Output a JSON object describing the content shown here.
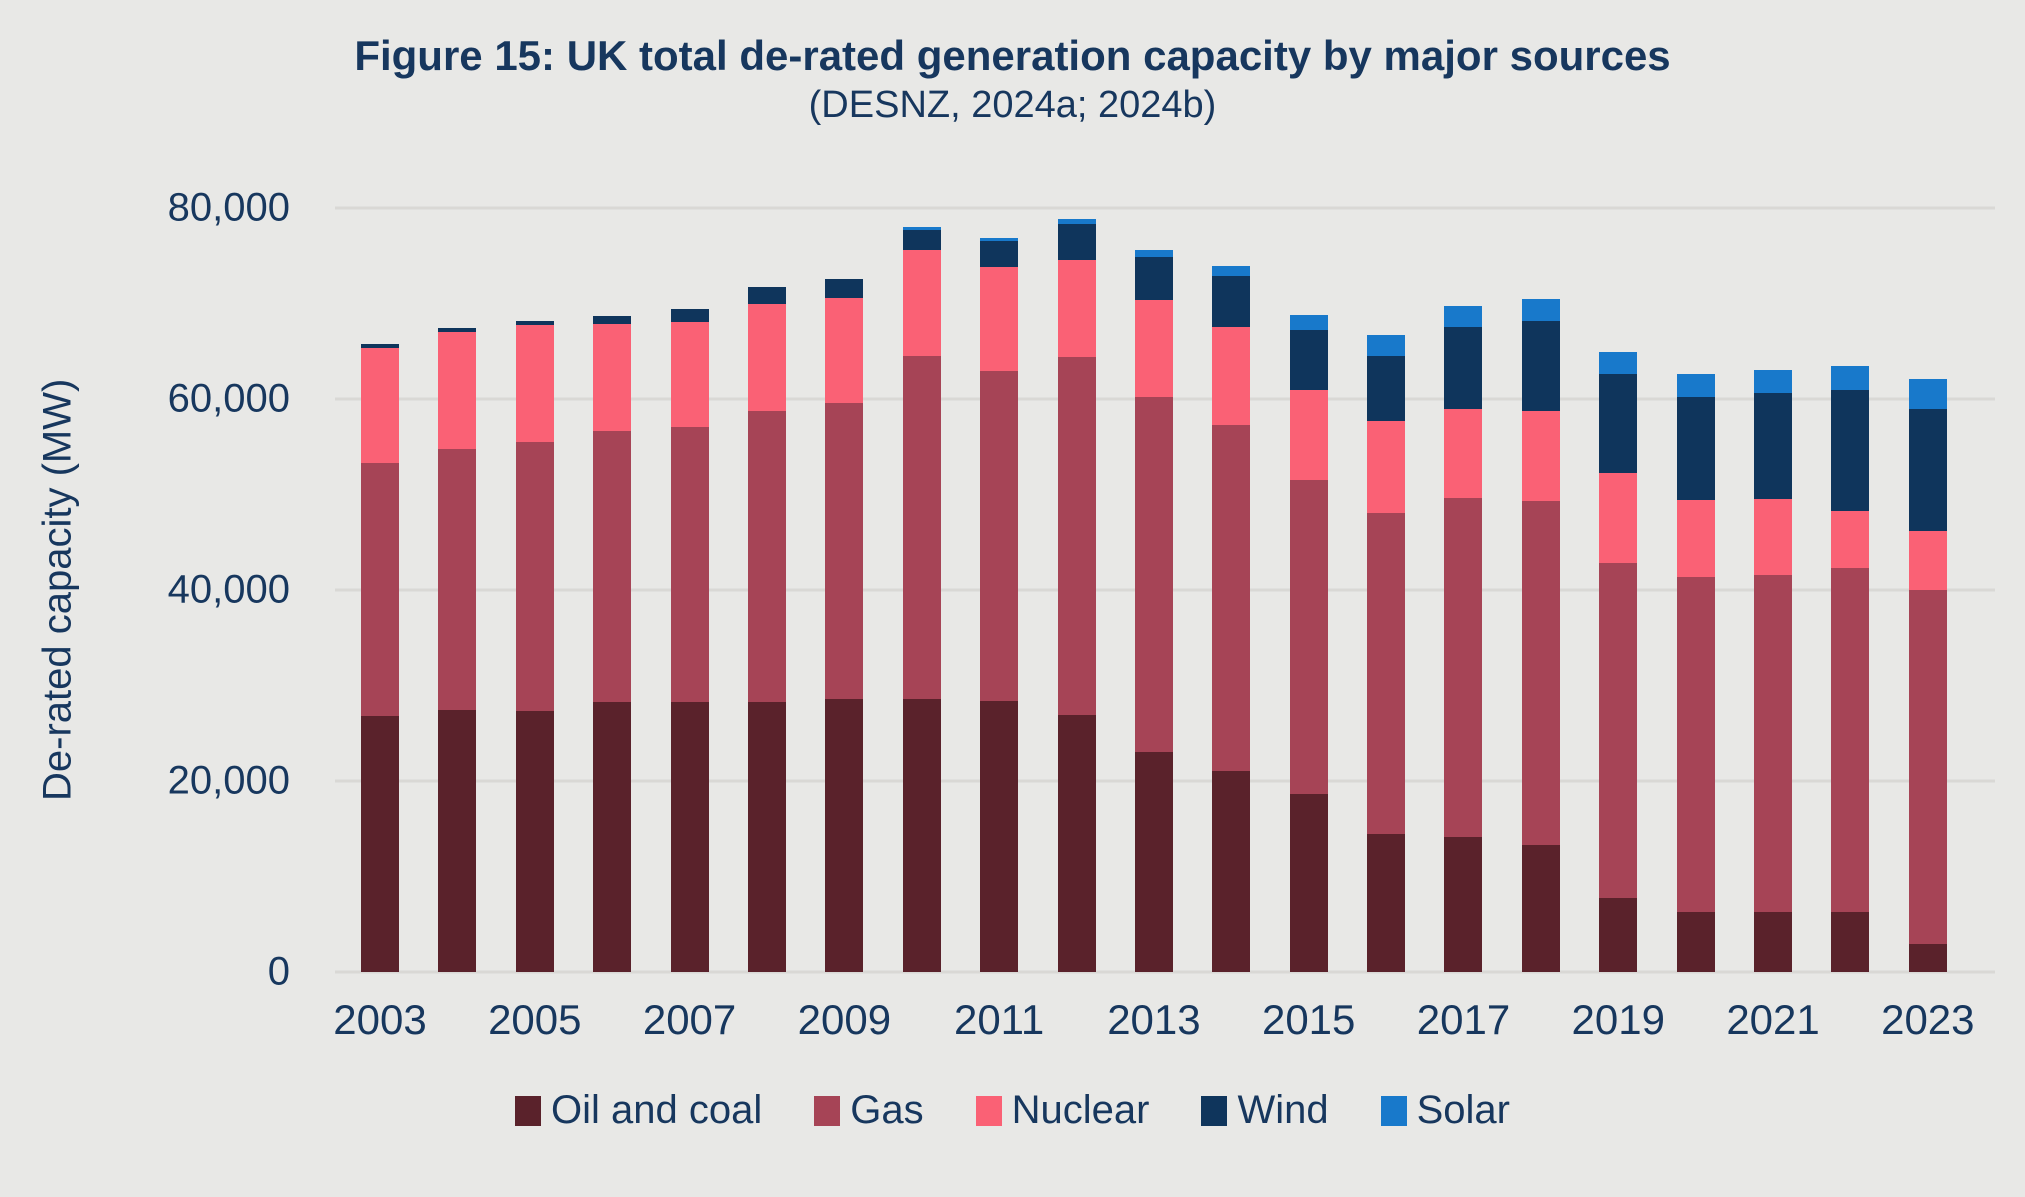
{
  "title": "Figure 15: UK total de-rated generation capacity by major sources",
  "subtitle": "(DESNZ, 2024a; 2024b)",
  "colors": {
    "background": "#e8e8e6",
    "gridline": "#d9d8d5",
    "text": "#17375e"
  },
  "chart_data": {
    "type": "bar",
    "stacked": true,
    "title": "Figure 15: UK total de-rated generation capacity by major sources",
    "subtitle": "(DESNZ, 2024a; 2024b)",
    "xlabel": "",
    "ylabel": "De-rated capacity (MW)",
    "ylim": [
      0,
      80000
    ],
    "ytick_interval": 20000,
    "ytick_labels": [
      "0",
      "20,000",
      "40,000",
      "60,000",
      "80,000"
    ],
    "grid": "horizontal",
    "legend_position": "bottom",
    "categories": [
      2003,
      2004,
      2005,
      2006,
      2007,
      2008,
      2009,
      2010,
      2011,
      2012,
      2013,
      2014,
      2015,
      2016,
      2017,
      2018,
      2019,
      2020,
      2021,
      2022,
      2023
    ],
    "xtick_labels_shown": [
      "2003",
      "2005",
      "2007",
      "2009",
      "2011",
      "2013",
      "2015",
      "2017",
      "2019",
      "2021",
      "2023"
    ],
    "series": [
      {
        "name": "Oil and coal",
        "color": "#5a222b",
        "values": [
          26800,
          27450,
          27300,
          28250,
          28250,
          28250,
          28600,
          28600,
          28400,
          26900,
          23000,
          21000,
          18600,
          14500,
          14100,
          13350,
          7800,
          6250,
          6300,
          6300,
          2900
        ]
      },
      {
        "name": "Gas",
        "color": "#a64456",
        "values": [
          26450,
          27300,
          28250,
          28350,
          28800,
          30450,
          31000,
          35900,
          34500,
          37500,
          37200,
          36300,
          32900,
          33600,
          35500,
          36000,
          35000,
          35150,
          35300,
          36000,
          37150
        ]
      },
      {
        "name": "Nuclear",
        "color": "#fa6175",
        "values": [
          12050,
          12250,
          12200,
          11300,
          11050,
          11250,
          10950,
          11100,
          10900,
          10200,
          10200,
          10200,
          9400,
          9600,
          9350,
          9400,
          9500,
          8050,
          7900,
          6000,
          6150
        ]
      },
      {
        "name": "Wind",
        "color": "#0f355c",
        "values": [
          450,
          400,
          450,
          800,
          1300,
          1800,
          2000,
          2100,
          2750,
          3700,
          4500,
          5400,
          6350,
          6800,
          8600,
          9450,
          10350,
          10750,
          11100,
          12600,
          12750
        ]
      },
      {
        "name": "Solar",
        "color": "#1879cb",
        "values": [
          0,
          0,
          0,
          0,
          0,
          0,
          0,
          300,
          350,
          500,
          700,
          1000,
          1500,
          2200,
          2180,
          2290,
          2280,
          2400,
          2450,
          2550,
          3100
        ]
      }
    ]
  }
}
